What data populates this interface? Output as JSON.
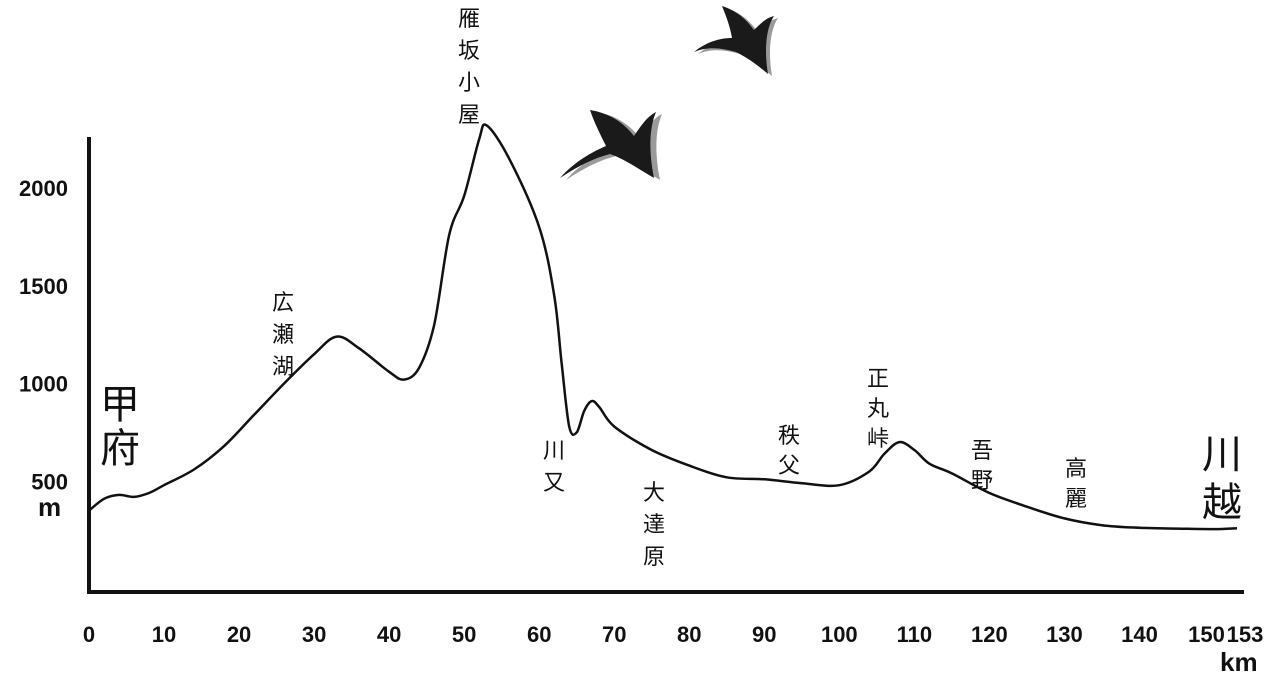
{
  "chart_data": {
    "type": "line",
    "title": "",
    "xlabel": "km",
    "ylabel": "m",
    "xlim": [
      0,
      153
    ],
    "ylim": [
      0,
      2300
    ],
    "x_ticks": [
      0,
      10,
      20,
      30,
      40,
      50,
      60,
      70,
      80,
      90,
      100,
      110,
      120,
      130,
      140,
      150,
      153
    ],
    "y_ticks": [
      500,
      1000,
      1500,
      2000
    ],
    "grid": false,
    "series": [
      {
        "x": [
          0,
          2,
          4,
          6,
          8,
          10,
          14,
          18,
          22,
          26,
          30,
          33,
          36,
          40,
          42,
          44,
          46,
          48,
          50,
          52,
          53,
          56,
          60,
          62,
          63,
          64,
          65,
          66,
          67,
          68,
          70,
          75,
          80,
          85,
          90,
          95,
          100,
          104,
          106,
          108,
          110,
          112,
          115,
          120,
          125,
          130,
          135,
          140,
          145,
          150,
          153
        ],
        "y": [
          350,
          410,
          430,
          420,
          440,
          480,
          560,
          680,
          840,
          1000,
          1150,
          1240,
          1180,
          1060,
          1020,
          1080,
          1300,
          1760,
          1960,
          2250,
          2320,
          2150,
          1800,
          1450,
          1100,
          780,
          750,
          860,
          910,
          880,
          780,
          660,
          580,
          520,
          510,
          490,
          480,
          550,
          640,
          700,
          660,
          590,
          540,
          440,
          370,
          310,
          275,
          262,
          258,
          255,
          260
        ]
      }
    ],
    "place_labels": [
      {
        "label": "甲府",
        "x": 0
      },
      {
        "label": "広瀬湖",
        "x": 30
      },
      {
        "label": "雁坂小屋",
        "x": 53
      },
      {
        "label": "川又",
        "x": 64
      },
      {
        "label": "大達原",
        "x": 78
      },
      {
        "label": "秩父",
        "x": 95
      },
      {
        "label": "正丸峠",
        "x": 108
      },
      {
        "label": "吾野",
        "x": 121
      },
      {
        "label": "高麗",
        "x": 134
      },
      {
        "label": "川越",
        "x": 153
      }
    ]
  }
}
